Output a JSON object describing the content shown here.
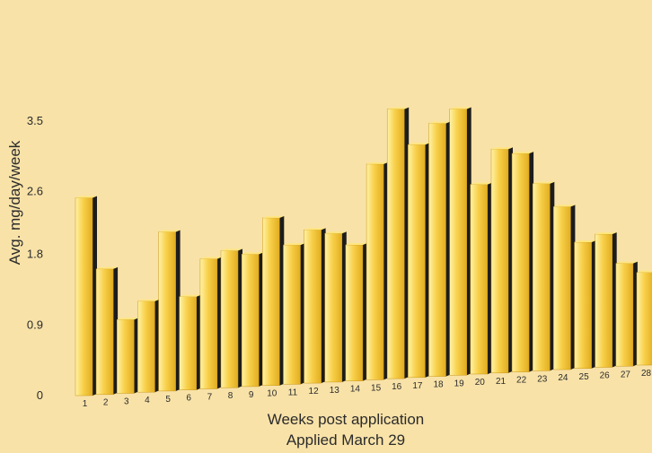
{
  "chart_data": {
    "type": "bar",
    "title": "",
    "xlabel": "Weeks post application",
    "xlabel_sub": "Applied March 29",
    "ylabel": "Avg. mg/day/week",
    "ylim": [
      0,
      3.5
    ],
    "yticks": [
      "0",
      "0.9",
      "1.8",
      "2.6",
      "3.5"
    ],
    "ytick_values": [
      0,
      0.9,
      1.8,
      2.6,
      3.5
    ],
    "grid": false,
    "legend": "none",
    "categories": [
      "1",
      "2",
      "3",
      "4",
      "5",
      "6",
      "7",
      "8",
      "9",
      "10",
      "11",
      "12",
      "13",
      "14",
      "15",
      "16",
      "17",
      "18",
      "19",
      "20",
      "21",
      "22",
      "23",
      "24",
      "25",
      "26",
      "27",
      "28"
    ],
    "values": [
      2.52,
      1.6,
      0.94,
      1.16,
      2.03,
      1.19,
      1.66,
      1.75,
      1.69,
      2.14,
      1.78,
      1.96,
      1.9,
      1.74,
      2.76,
      3.45,
      2.98,
      3.24,
      3.41,
      2.43,
      2.87,
      2.8,
      2.4,
      2.09,
      1.62,
      1.71,
      1.32,
      1.19
    ],
    "colors": {
      "background": "#f8e2a8",
      "bar_front": "#f5c83c",
      "bar_highlight": "#fff0a0",
      "bar_side": "#1c1c1c",
      "bar_top": "#ffe680",
      "text": "#2b2b2b"
    }
  }
}
